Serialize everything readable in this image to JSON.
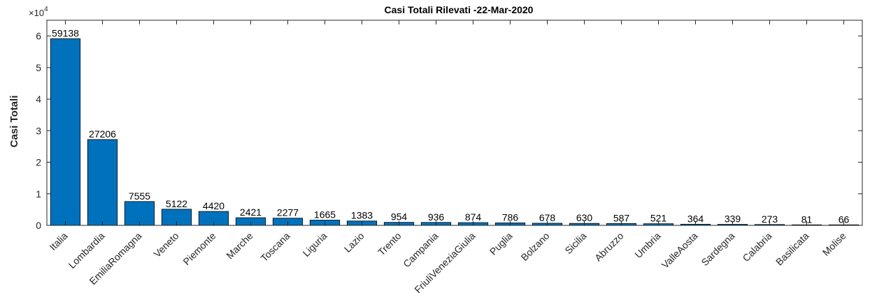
{
  "chart_data": {
    "type": "bar",
    "title": "Casi Totali Rilevati -22-Mar-2020",
    "xlabel": "",
    "ylabel": "Casi Totali",
    "y_exponent_label": "×10",
    "y_exponent_power": "4",
    "y_scale": 10000,
    "ylim": [
      0,
      65000
    ],
    "y_ticks": [
      0,
      10000,
      20000,
      30000,
      40000,
      50000,
      60000
    ],
    "y_tick_labels": [
      "0",
      "1",
      "2",
      "3",
      "4",
      "5",
      "6"
    ],
    "bar_color": "#0072BD",
    "categories": [
      "Italia",
      "Lombardia",
      "EmiliaRomagna",
      "Veneto",
      "Piemonte",
      "Marche",
      "Toscana",
      "Liguria",
      "Lazio",
      "Trento",
      "Campania",
      "FriuliVeneziaGiulia",
      "Puglia",
      "Bolzano",
      "Sicilia",
      "Abruzzo",
      "Umbria",
      "ValleAosta",
      "Sardegna",
      "Calabria",
      "Basilicata",
      "Molise"
    ],
    "values": [
      59138,
      27206,
      7555,
      5122,
      4420,
      2421,
      2277,
      1665,
      1383,
      954,
      936,
      874,
      786,
      678,
      630,
      587,
      521,
      364,
      339,
      273,
      81,
      66
    ],
    "data_labels": [
      "59138",
      "27206",
      "7555",
      "5122",
      "4420",
      "2421",
      "2277",
      "1665",
      "1383",
      "954",
      "936",
      "874",
      "786",
      "678",
      "630",
      "587",
      "521",
      "364",
      "339",
      "273",
      "81",
      "66"
    ]
  }
}
